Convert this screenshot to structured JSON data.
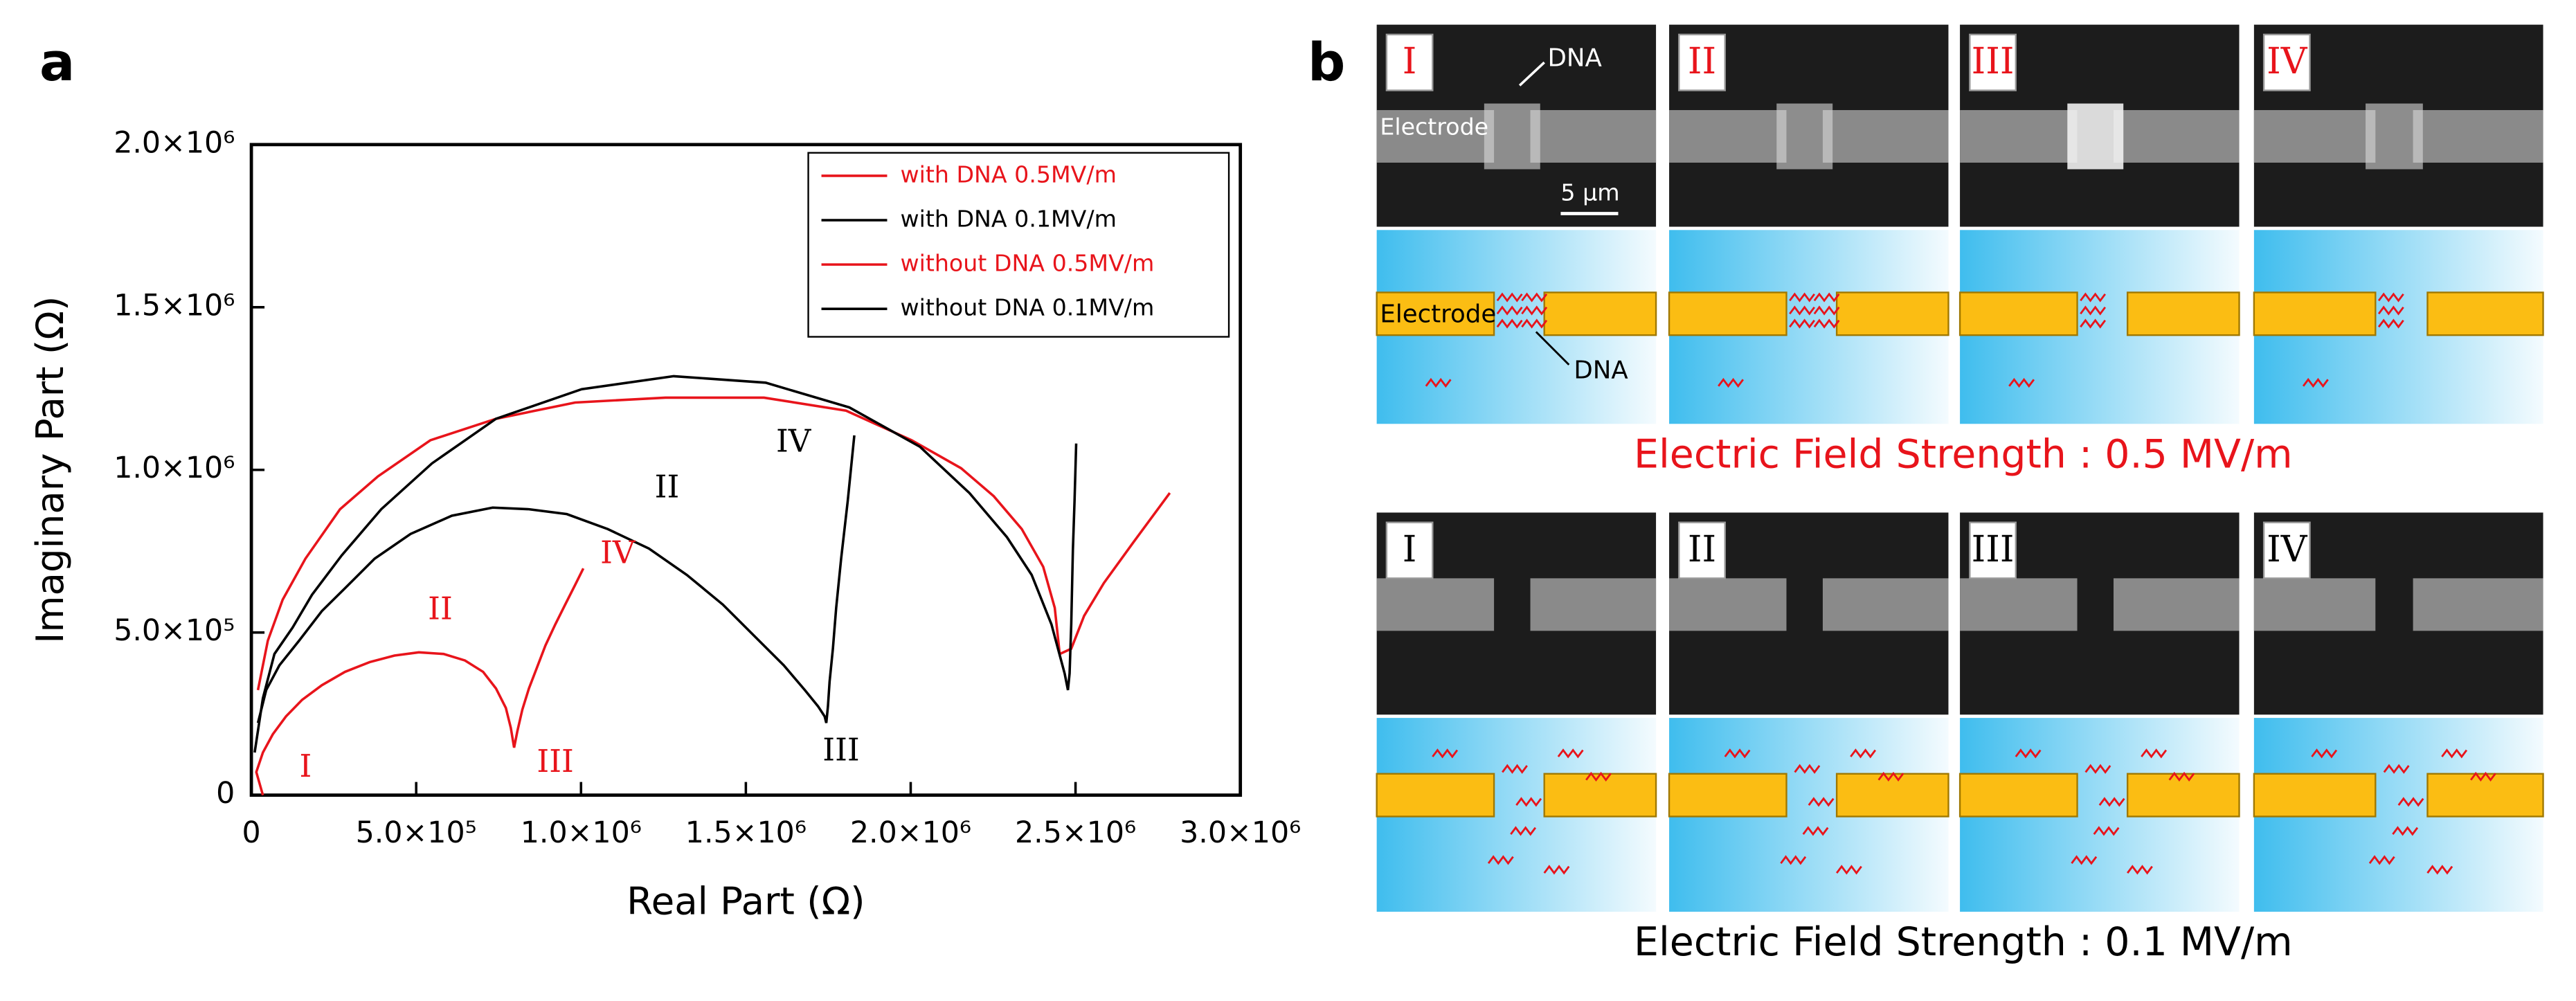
{
  "panel_a_label": "a",
  "chart_data": {
    "type": "line",
    "xlabel": "Real Part (Ω)",
    "ylabel": "Imaginary Part (Ω)",
    "xlim": [
      0,
      3000000
    ],
    "ylim": [
      0,
      2000000
    ],
    "xticks": [
      0,
      {
        "value": 500000,
        "label": "5.0×10⁵"
      },
      {
        "value": 1000000,
        "label": "1.0×10⁶"
      },
      {
        "value": 1500000,
        "label": "1.5×10⁶"
      },
      {
        "value": 2000000,
        "label": "2.0×10⁶"
      },
      {
        "value": 2500000,
        "label": "2.5×10⁶"
      },
      {
        "value": 3000000,
        "label": "3.0×10⁶"
      }
    ],
    "yticks": [
      0,
      {
        "value": 500000,
        "label": "5.0×10⁵"
      },
      {
        "value": 1000000,
        "label": "1.0×10⁶"
      },
      {
        "value": 1500000,
        "label": "1.5×10⁶"
      },
      {
        "value": 2000000,
        "label": "2.0×10⁶"
      }
    ],
    "legend": "upper right",
    "series": [
      {
        "name": "with DNA 0.5MV/m",
        "color": "#e8141b",
        "marker": "circle",
        "filled": true,
        "x": [
          35000,
          15000,
          35000,
          65000,
          105000,
          154000,
          214000,
          284000,
          359000,
          434000,
          508000,
          583000,
          648000,
          703000,
          742000,
          772000,
          787000,
          797000,
          807000,
          822000,
          842000,
          867000,
          892000,
          922000,
          952000,
          982000,
          1007000
        ],
        "values": [
          0,
          71000,
          131000,
          187000,
          242000,
          293000,
          338000,
          379000,
          409000,
          429000,
          439000,
          434000,
          414000,
          379000,
          328000,
          268000,
          207000,
          146000,
          197000,
          263000,
          328000,
          394000,
          460000,
          525000,
          586000,
          646000,
          697000
        ]
      },
      {
        "name": "with DNA 0.1MV/m",
        "color": "#000000",
        "marker": "circle",
        "filled": false,
        "x": [
          20000,
          45000,
          85000,
          145000,
          214000,
          284000,
          374000,
          483000,
          608000,
          732000,
          842000,
          957000,
          1081000,
          1206000,
          1321000,
          1430000,
          1530000,
          1615000,
          1679000,
          1719000,
          1739000,
          1744000,
          1749000,
          1754000,
          1764000,
          1774000,
          1789000,
          1809000,
          1829000
        ],
        "values": [
          222000,
          323000,
          399000,
          475000,
          566000,
          636000,
          727000,
          803000,
          859000,
          884000,
          879000,
          864000,
          818000,
          758000,
          677000,
          586000,
          485000,
          399000,
          323000,
          273000,
          242000,
          222000,
          273000,
          349000,
          450000,
          576000,
          727000,
          904000,
          1106000
        ]
      },
      {
        "name": "without DNA 0.5MV/m",
        "color": "#e8141b",
        "marker": "square",
        "filled": true,
        "x": [
          20000,
          50000,
          95000,
          164000,
          269000,
          384000,
          543000,
          742000,
          982000,
          1256000,
          1555000,
          1804000,
          2003000,
          2153000,
          2252000,
          2337000,
          2402000,
          2437000,
          2452000,
          2487000,
          2526000,
          2586000,
          2676000,
          2786000
        ],
        "values": [
          323000,
          475000,
          601000,
          727000,
          879000,
          980000,
          1091000,
          1157000,
          1207000,
          1222000,
          1222000,
          1182000,
          1091000,
          1005000,
          919000,
          818000,
          702000,
          576000,
          434000,
          450000,
          551000,
          652000,
          778000,
          929000
        ]
      },
      {
        "name": "without DNA 0.1MV/m",
        "color": "#000000",
        "marker": "square",
        "filled": false,
        "x": [
          10000,
          35000,
          70000,
          125000,
          184000,
          274000,
          394000,
          548000,
          742000,
          1002000,
          1281000,
          1560000,
          1814000,
          2028000,
          2178000,
          2292000,
          2367000,
          2427000,
          2467000,
          2477000,
          2482000,
          2487000,
          2492000,
          2497000,
          2502000
        ],
        "values": [
          131000,
          298000,
          434000,
          515000,
          616000,
          737000,
          879000,
          1020000,
          1157000,
          1248000,
          1288000,
          1268000,
          1192000,
          1071000,
          929000,
          793000,
          677000,
          525000,
          374000,
          323000,
          374000,
          525000,
          753000,
          904000,
          1081000
        ]
      }
    ],
    "annotations": [
      {
        "text": "I",
        "color": "#e8141b"
      },
      {
        "text": "II",
        "color": "#e8141b"
      },
      {
        "text": "III",
        "color": "#e8141b"
      },
      {
        "text": "IV",
        "color": "#e8141b"
      },
      {
        "text": "II",
        "color": "#000000"
      },
      {
        "text": "III",
        "color": "#000000"
      },
      {
        "text": "IV",
        "color": "#000000"
      }
    ]
  },
  "panel_b": {
    "label": "b",
    "rows": [
      {
        "stage_labels": [
          "I",
          "II",
          "III",
          "IV"
        ],
        "label_color": "#e8141b",
        "field_label": "Electric Field Strength : 0.5 MV/m"
      },
      {
        "stage_labels": [
          "I",
          "II",
          "III",
          "IV"
        ],
        "label_color": "#000000",
        "field_label": "Electric Field Strength : 0.1 MV/m"
      }
    ],
    "image_dna": "DNA",
    "image_electrode": "Electrode",
    "scale_bar": "5 μm",
    "schematic_electrode": "Electrode",
    "schematic_dna": "DNA"
  }
}
